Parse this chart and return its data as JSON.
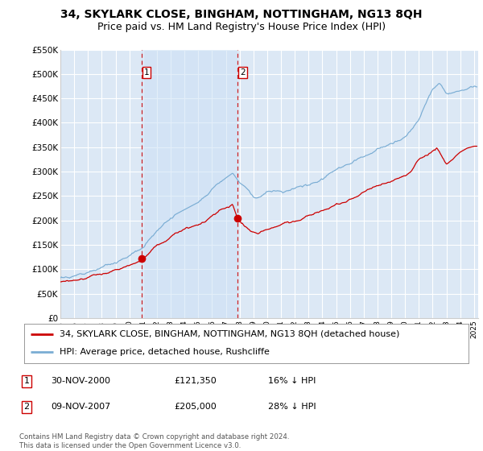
{
  "title": "34, SKYLARK CLOSE, BINGHAM, NOTTINGHAM, NG13 8QH",
  "subtitle": "Price paid vs. HM Land Registry's House Price Index (HPI)",
  "ylim": [
    0,
    550000
  ],
  "yticks": [
    0,
    50000,
    100000,
    150000,
    200000,
    250000,
    300000,
    350000,
    400000,
    450000,
    500000,
    550000
  ],
  "xlim_start": 1995.0,
  "xlim_end": 2025.3,
  "background_color": "#ffffff",
  "plot_bg_color": "#dce8f5",
  "shade_color": "#ccddf0",
  "grid_color": "#ffffff",
  "sale1_date": 2000.92,
  "sale1_price": 121350,
  "sale1_label": "1",
  "sale2_date": 2007.87,
  "sale2_price": 205000,
  "sale2_label": "2",
  "red_line_color": "#cc0000",
  "blue_line_color": "#7aadd4",
  "legend_entry1": "34, SKYLARK CLOSE, BINGHAM, NOTTINGHAM, NG13 8QH (detached house)",
  "legend_entry2": "HPI: Average price, detached house, Rushcliffe",
  "table_row1_num": "1",
  "table_row1_date": "30-NOV-2000",
  "table_row1_price": "£121,350",
  "table_row1_hpi": "16% ↓ HPI",
  "table_row2_num": "2",
  "table_row2_date": "09-NOV-2007",
  "table_row2_price": "£205,000",
  "table_row2_hpi": "28% ↓ HPI",
  "footer": "Contains HM Land Registry data © Crown copyright and database right 2024.\nThis data is licensed under the Open Government Licence v3.0.",
  "title_fontsize": 10,
  "subtitle_fontsize": 9,
  "tick_fontsize": 7.5,
  "legend_fontsize": 8
}
